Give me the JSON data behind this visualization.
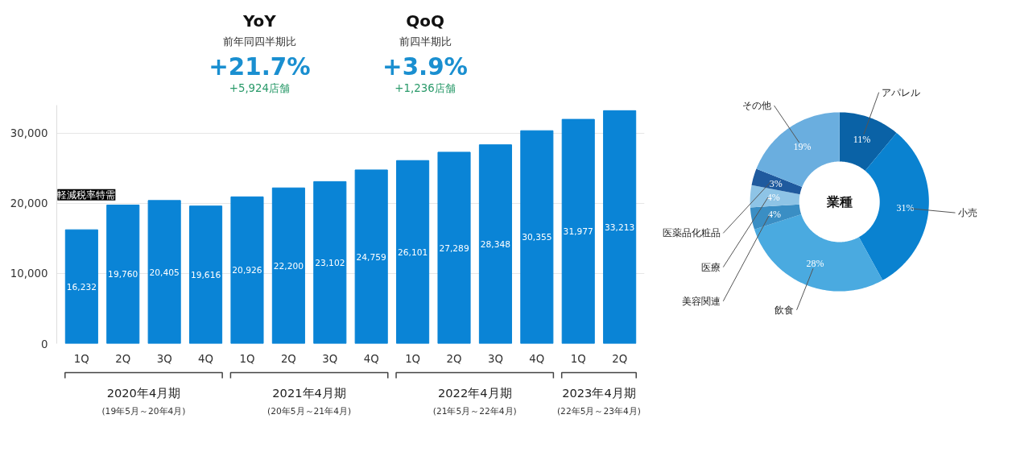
{
  "chart_data": [
    {
      "type": "bar",
      "categories": [
        "1Q",
        "2Q",
        "3Q",
        "4Q",
        "1Q",
        "2Q",
        "3Q",
        "4Q",
        "1Q",
        "2Q",
        "3Q",
        "4Q",
        "1Q",
        "2Q"
      ],
      "values": [
        16232,
        19760,
        20405,
        19616,
        20926,
        22200,
        23102,
        24759,
        26101,
        27289,
        28348,
        30355,
        31977,
        33213
      ],
      "color": "#0a84d6",
      "ylim": [
        0,
        34000
      ],
      "yticks": [
        {
          "value": 0,
          "label": "0"
        },
        {
          "value": 10000,
          "label": "10,000"
        },
        {
          "value": 20000,
          "label": "20,000"
        },
        {
          "value": 30000,
          "label": "30,000"
        }
      ],
      "grid": "y",
      "value_labels": [
        "16,232",
        "19,760",
        "20,405",
        "19,616",
        "20,926",
        "22,200",
        "23,102",
        "24,759",
        "26,101",
        "27,289",
        "28,348",
        "30,355",
        "31,977",
        "33,213"
      ],
      "annotations": [
        "YoY",
        "前年同四半期比",
        "+21.7%",
        "+5,924店舗",
        "QoQ",
        "前四半期比",
        "+3.9%",
        "+1,236店舗",
        "軽減税率特需",
        "2020年4月期",
        "(19年5月～20年4月)",
        "2021年4月期",
        "(20年5月～21年4月)",
        "2022年4月期",
        "(21年5月～22年4月)",
        "2023年4月期",
        "(22年5月～23年4月)"
      ]
    },
    {
      "type": "donut",
      "title": "業種",
      "categories": [
        "アパレル",
        "小売",
        "飲食",
        "美容関連",
        "医療",
        "医薬品化粧品",
        "その他"
      ],
      "values": [
        11,
        31,
        28,
        4,
        4,
        3,
        19
      ],
      "colors": [
        "#0a62a6",
        "#0a82d0",
        "#4aaae0",
        "#3a8ec4",
        "#8ec4e6",
        "#1f5a9e",
        "#6aaedf"
      ],
      "value_labels": [
        "11%",
        "31%",
        "28%",
        "4%",
        "4%",
        "3%",
        "19%"
      ]
    }
  ]
}
